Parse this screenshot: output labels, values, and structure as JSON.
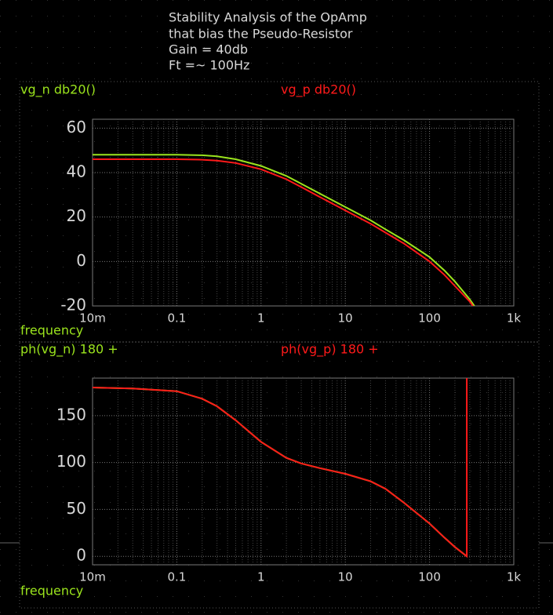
{
  "chart_data": [
    {
      "type": "line",
      "title": [
        "Stability Analysis of the OpAmp",
        "that bias the Pseudo-Resistor",
        "Gain = 40db",
        "Ft =~ 100Hz"
      ],
      "x_label": "frequency",
      "xscale": "log",
      "grid": true,
      "xlim": [
        0.01,
        1000
      ],
      "xticks": [
        {
          "value": 0.01,
          "label": "10m"
        },
        0.1,
        1,
        10,
        100,
        {
          "value": 1000,
          "label": "1k"
        }
      ],
      "ylim": [
        -20,
        64
      ],
      "yticks": [
        -20,
        0,
        20,
        40,
        60
      ],
      "x": [
        0.01,
        0.03,
        0.1,
        0.2,
        0.3,
        0.5,
        1,
        2,
        3,
        5,
        10,
        20,
        30,
        50,
        100,
        150,
        200,
        300,
        340
      ],
      "series": [
        {
          "name": "vg_n db20()",
          "color": "#9be41d",
          "values": [
            48,
            48,
            48,
            47.8,
            47.3,
            46,
            43,
            38.5,
            35,
            30.5,
            24.5,
            18.5,
            14.5,
            9.5,
            2,
            -4,
            -9,
            -17,
            -20
          ]
        },
        {
          "name": "vg_p db20()",
          "color": "#ff1a1a",
          "values": [
            46,
            46,
            46,
            45.8,
            45.4,
            44.3,
            41.5,
            37,
            33.5,
            29,
            23,
            17,
            13,
            8,
            0,
            -6,
            -11,
            -18,
            -21
          ]
        }
      ]
    },
    {
      "type": "line",
      "x_label": "frequency",
      "xscale": "log",
      "grid": true,
      "xlim": [
        0.01,
        1000
      ],
      "xticks": [
        {
          "value": 0.01,
          "label": "10m"
        },
        0.1,
        1,
        10,
        100,
        {
          "value": 1000,
          "label": "1k"
        }
      ],
      "ylim": [
        -9,
        190
      ],
      "yticks": [
        0,
        50,
        100,
        150
      ],
      "x": [
        0.01,
        0.03,
        0.1,
        0.2,
        0.3,
        0.5,
        1,
        2,
        3,
        5,
        10,
        20,
        30,
        50,
        100,
        150,
        200,
        277,
        277
      ],
      "series": [
        {
          "name": "ph(vg_n) 180 +",
          "color": "#9be41d",
          "values": [
            180,
            179,
            176,
            168,
            160,
            145,
            122,
            105,
            99,
            94,
            88,
            80,
            72,
            57,
            35,
            20,
            10,
            0,
            null
          ]
        },
        {
          "name": "ph(vg_p) 180 +",
          "color": "#ff1a1a",
          "values": [
            180,
            179,
            176,
            168,
            160,
            145,
            122,
            105,
            99,
            94,
            88,
            80,
            72,
            57,
            35,
            20,
            10,
            0,
            190
          ]
        }
      ]
    }
  ]
}
